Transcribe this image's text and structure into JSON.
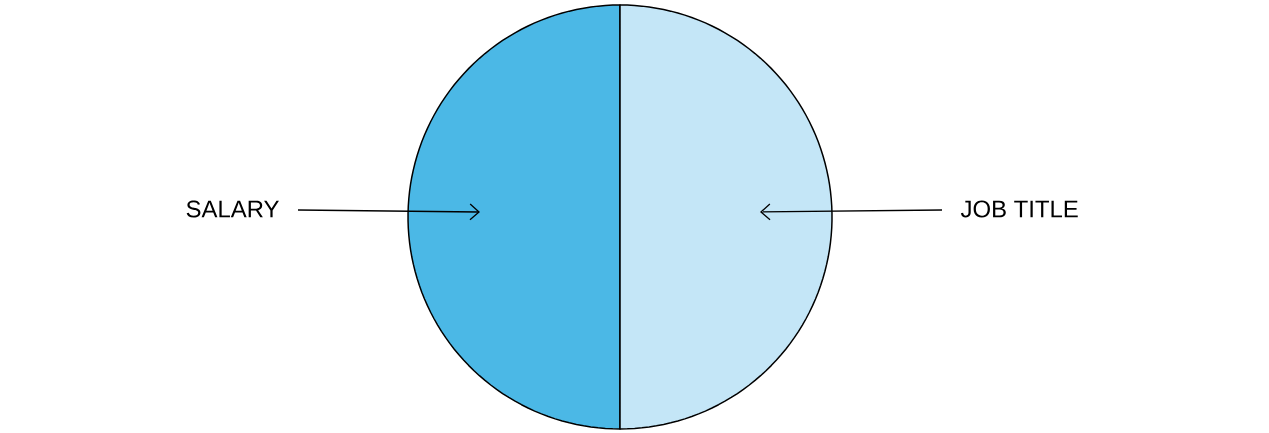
{
  "chart_data": {
    "type": "pie",
    "categories": [
      "SALARY",
      "JOB TITLE"
    ],
    "values": [
      50,
      50
    ],
    "colors": [
      "#4bb8e6",
      "#c4e6f7"
    ],
    "legend": false
  }
}
